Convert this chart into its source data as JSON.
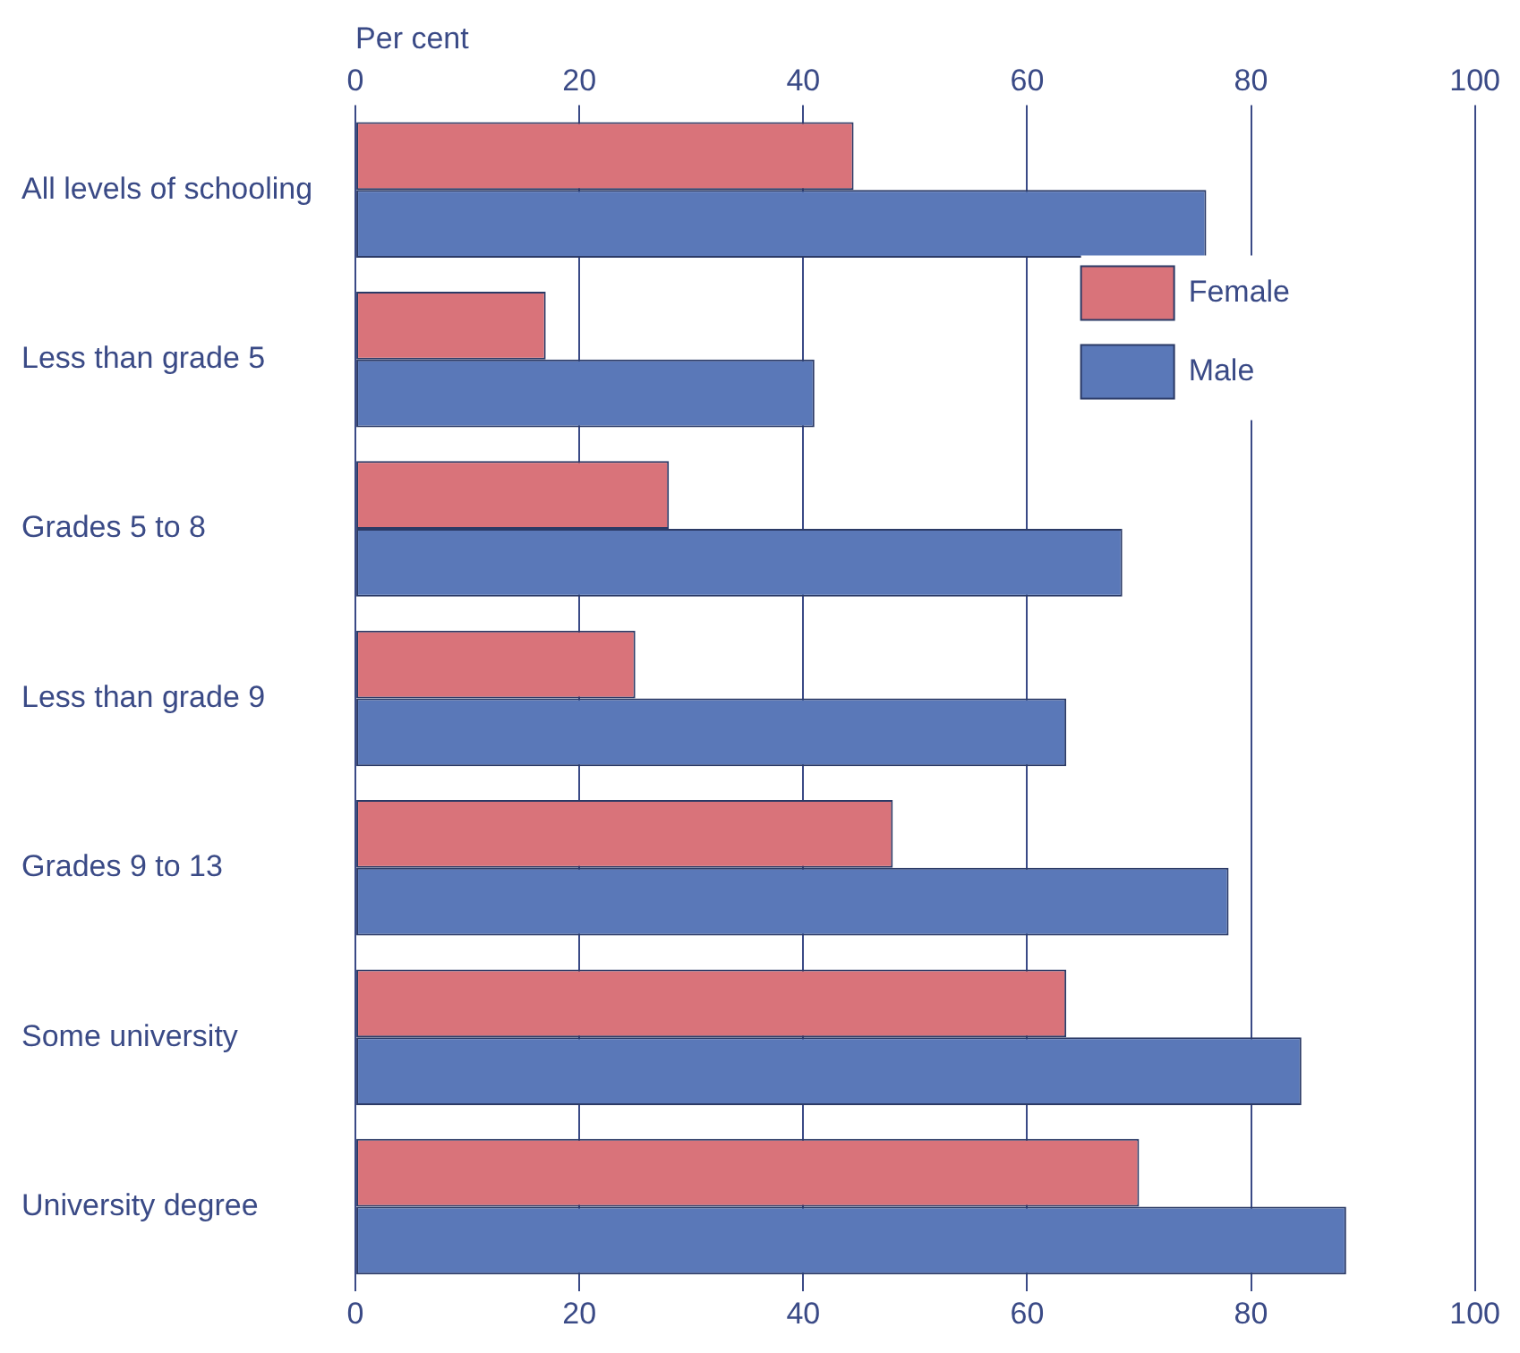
{
  "chart_data": {
    "type": "bar",
    "orientation": "horizontal",
    "x2label": "Per cent",
    "categories": [
      "All levels of schooling",
      "Less than grade 5",
      "Grades 5 to 8",
      "Less than grade 9",
      "Grades 9 to 13",
      "Some university",
      "University degree"
    ],
    "series": [
      {
        "name": "Female",
        "color": "#d9737a",
        "values": [
          44.5,
          17,
          28,
          25,
          48,
          63.5,
          70
        ]
      },
      {
        "name": "Male",
        "color": "#5a78b8",
        "values": [
          76,
          41,
          68.5,
          63.5,
          78,
          84.5,
          88.5
        ]
      }
    ],
    "xlim": [
      0,
      100
    ],
    "xticks": [
      0,
      20,
      40,
      60,
      80,
      100
    ],
    "x2lim": [
      0,
      100
    ],
    "x2ticks": [
      0,
      20,
      40,
      60,
      80,
      100
    ],
    "grid": "x",
    "legend": "top right"
  }
}
